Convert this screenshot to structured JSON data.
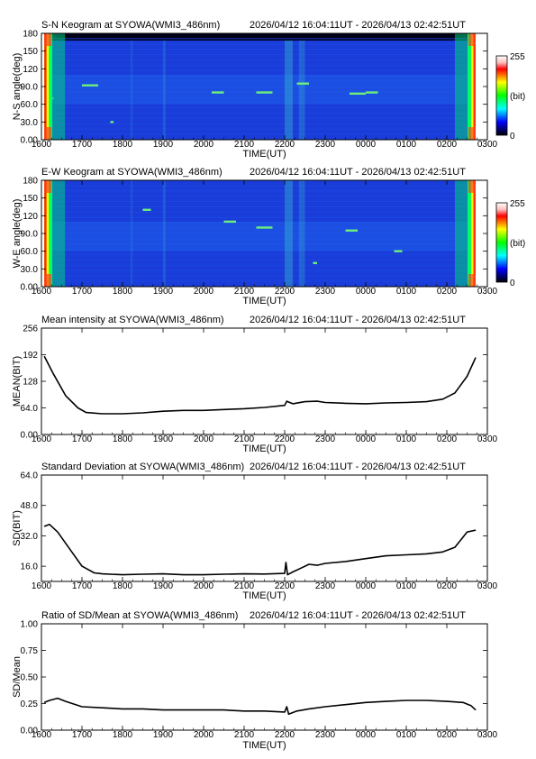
{
  "time_ticks": [
    "1600",
    "1700",
    "1800",
    "1900",
    "2000",
    "2100",
    "2200",
    "2300",
    "0000",
    "0100",
    "0200",
    "0300"
  ],
  "time_label": "TIME(UT)",
  "time_range": "2026/04/12 16:04:11UT - 2026/04/13 02:42:51UT",
  "colorbar": {
    "max_label": "255",
    "unit_label": "(bit)",
    "min_label": "0"
  },
  "chart_data": [
    {
      "type": "heatmap",
      "title": "S-N Keogram at SYOWA(WMI3_486nm)",
      "ylabel": "N-S angle(deg)",
      "yticks": [
        "0.00",
        "30.0",
        "60.0",
        "90.0",
        "120",
        "150",
        "180"
      ],
      "ylim": [
        0,
        180
      ],
      "xlim": [
        16.0,
        27.0
      ],
      "data_start": 16.07,
      "data_end": 26.71,
      "color_scale": [
        "#000000",
        "#000080",
        "#0000ff",
        "#0080ff",
        "#00ffff",
        "#00ff80",
        "#00ff00",
        "#80ff00",
        "#ffff00",
        "#ff8000",
        "#ff0000",
        "#ffc0c0",
        "#ffffff"
      ],
      "bright_streaks": [
        {
          "t": 17.0,
          "a": 92,
          "w": 0.4
        },
        {
          "t": 17.7,
          "a": 30,
          "w": 0.08
        },
        {
          "t": 20.2,
          "a": 80,
          "w": 0.3
        },
        {
          "t": 21.3,
          "a": 80,
          "w": 0.4
        },
        {
          "t": 23.6,
          "a": 78,
          "w": 0.4
        },
        {
          "t": 24.0,
          "a": 80,
          "w": 0.3
        },
        {
          "t": 22.3,
          "a": 95,
          "w": 0.3
        },
        {
          "t": 16.2,
          "a": 70,
          "w": 0.1
        }
      ]
    },
    {
      "type": "heatmap",
      "title": "E-W Keogram at SYOWA(WMI3_486nm)",
      "ylabel": "W-E angle(deg)",
      "yticks": [
        "0.00",
        "30.0",
        "60.0",
        "90.0",
        "120",
        "150",
        "180"
      ],
      "ylim": [
        0,
        180
      ],
      "xlim": [
        16.0,
        27.0
      ],
      "data_start": 16.07,
      "data_end": 26.71,
      "bright_streaks": [
        {
          "t": 21.3,
          "a": 100,
          "w": 0.4
        },
        {
          "t": 20.5,
          "a": 110,
          "w": 0.3
        },
        {
          "t": 22.7,
          "a": 40,
          "w": 0.1
        },
        {
          "t": 23.5,
          "a": 95,
          "w": 0.3
        },
        {
          "t": 18.5,
          "a": 130,
          "w": 0.2
        },
        {
          "t": 24.7,
          "a": 60,
          "w": 0.2
        }
      ]
    },
    {
      "type": "line",
      "title": "Mean intensity at SYOWA(WMI3_486nm)",
      "ylabel": "MEAN(BIT)",
      "yticks": [
        "0.00",
        "64.0",
        "128",
        "192",
        "256"
      ],
      "ylim": [
        0,
        256
      ],
      "xlim": [
        16.0,
        27.0
      ],
      "x": [
        16.07,
        16.3,
        16.6,
        16.9,
        17.1,
        17.5,
        18.0,
        18.5,
        19.0,
        19.5,
        20.0,
        20.5,
        21.0,
        21.5,
        22.0,
        22.05,
        22.2,
        22.5,
        22.8,
        23.0,
        23.5,
        24.0,
        24.5,
        25.0,
        25.5,
        25.9,
        26.2,
        26.5,
        26.71
      ],
      "y": [
        188,
        145,
        93,
        64,
        53,
        50,
        50,
        52,
        56,
        58,
        58,
        60,
        62,
        65,
        70,
        80,
        74,
        79,
        80,
        77,
        75,
        74,
        76,
        77,
        79,
        85,
        100,
        140,
        185
      ]
    },
    {
      "type": "line",
      "title": "Standard Deviation at SYOWA(WMI3_486nm)",
      "ylabel": "SD(BIT)",
      "yticks": [
        "16.0",
        "32.0",
        "48.0",
        "64.0"
      ],
      "ylim": [
        8,
        64
      ],
      "xlim": [
        16.0,
        27.0
      ],
      "x": [
        16.07,
        16.2,
        16.4,
        16.7,
        17.0,
        17.3,
        17.5,
        18.0,
        18.5,
        19.0,
        19.5,
        20.0,
        20.5,
        21.0,
        21.5,
        22.0,
        22.03,
        22.07,
        22.2,
        22.4,
        22.6,
        22.8,
        23.0,
        23.5,
        24.0,
        24.5,
        25.0,
        25.5,
        25.9,
        26.2,
        26.5,
        26.71
      ],
      "y": [
        37,
        38,
        34,
        25,
        16,
        12.5,
        12,
        11.5,
        11.8,
        12,
        11.5,
        11.5,
        11.8,
        12,
        11.9,
        12.2,
        18,
        11.5,
        13,
        15,
        17,
        16.5,
        17.5,
        18.5,
        20,
        21.5,
        22,
        22.5,
        23.5,
        26,
        34,
        35
      ]
    },
    {
      "type": "line",
      "title": "Ratio of SD/Mean at SYOWA(WMI3_486nm)",
      "ylabel": "SD/Mean",
      "yticks": [
        "0.00",
        "0.25",
        "0.50",
        "0.75",
        "1.00"
      ],
      "ylim": [
        0,
        1.0
      ],
      "xlim": [
        16.0,
        27.0
      ],
      "x": [
        16.07,
        16.2,
        16.4,
        16.6,
        17.0,
        17.5,
        18.0,
        18.5,
        19.0,
        19.5,
        20.0,
        20.5,
        21.0,
        21.5,
        22.0,
        22.05,
        22.1,
        22.3,
        22.6,
        23.0,
        23.5,
        24.0,
        24.5,
        25.0,
        25.5,
        26.0,
        26.4,
        26.6,
        26.71
      ],
      "y": [
        0.26,
        0.28,
        0.3,
        0.27,
        0.22,
        0.21,
        0.2,
        0.2,
        0.19,
        0.19,
        0.19,
        0.19,
        0.18,
        0.18,
        0.17,
        0.22,
        0.15,
        0.18,
        0.2,
        0.22,
        0.24,
        0.26,
        0.27,
        0.28,
        0.28,
        0.27,
        0.26,
        0.23,
        0.19
      ]
    }
  ]
}
